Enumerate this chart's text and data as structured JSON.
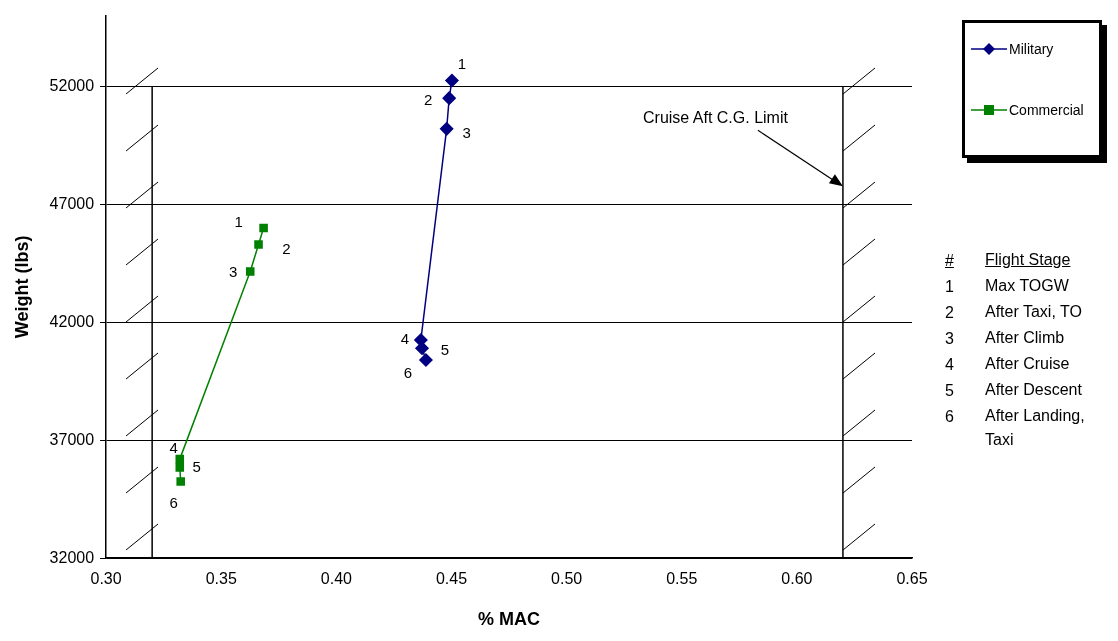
{
  "chart_data": {
    "type": "scatter",
    "xlabel": "% MAC",
    "ylabel": "Weight (lbs)",
    "xlim": [
      0.3,
      0.65
    ],
    "xticks": [
      {
        "value": 0.3,
        "label": "0.30"
      },
      {
        "value": 0.35,
        "label": "0.35"
      },
      {
        "value": 0.4,
        "label": "0.40"
      },
      {
        "value": 0.45,
        "label": "0.45"
      },
      {
        "value": 0.5,
        "label": "0.50"
      },
      {
        "value": 0.55,
        "label": "0.55"
      },
      {
        "value": 0.6,
        "label": "0.60"
      },
      {
        "value": 0.65,
        "label": "0.65"
      }
    ],
    "ylim": [
      32000,
      55000
    ],
    "yticks": [
      32000,
      37000,
      42000,
      47000,
      52000
    ],
    "grid": "y",
    "legend": "top right",
    "line_style": "solid",
    "series": [
      {
        "name": "Military",
        "type": "line",
        "color": "#000080",
        "marker": "diamond",
        "x": [
          0.4502,
          0.449,
          0.4479,
          0.4367,
          0.4372,
          0.4389
        ],
        "values": [
          52250,
          51500,
          50200,
          41250,
          40900,
          40400
        ]
      },
      {
        "name": "Commercial",
        "type": "line",
        "color": "#008000",
        "marker": "square",
        "x": [
          0.3684,
          0.3662,
          0.3626,
          0.332,
          0.332,
          0.3324
        ],
        "values": [
          46000,
          45300,
          44150,
          36200,
          35850,
          35250
        ]
      }
    ],
    "ref_lines": [
      {
        "axis": "x",
        "value": 0.32,
        "label": null
      },
      {
        "axis": "x",
        "value": 0.62,
        "label": "Cruise Aft C.G. Limit"
      }
    ],
    "annotations": [
      {
        "text": "1",
        "x": 0.4502,
        "y": 52250
      },
      {
        "text": "2",
        "x": 0.449,
        "y": 51500
      },
      {
        "text": "3",
        "x": 0.4479,
        "y": 50200
      },
      {
        "text": "4",
        "x": 0.4367,
        "y": 41250
      },
      {
        "text": "5",
        "x": 0.4372,
        "y": 40900
      },
      {
        "text": "6",
        "x": 0.4389,
        "y": 40400
      },
      {
        "text": "1",
        "x": 0.3684,
        "y": 46000
      },
      {
        "text": "2",
        "x": 0.3662,
        "y": 45300
      },
      {
        "text": "3",
        "x": 0.3626,
        "y": 44150
      },
      {
        "text": "4",
        "x": 0.332,
        "y": 36200
      },
      {
        "text": "5",
        "x": 0.332,
        "y": 35850
      },
      {
        "text": "6",
        "x": 0.3324,
        "y": 35250
      },
      "#",
      "Flight Stage",
      "1",
      "Max TOGW",
      "2",
      "After Taxi, TO",
      "3",
      "After Climb",
      "4",
      "After Cruise",
      "5",
      "After Descent",
      "6",
      "After Landing, Taxi"
    ]
  }
}
